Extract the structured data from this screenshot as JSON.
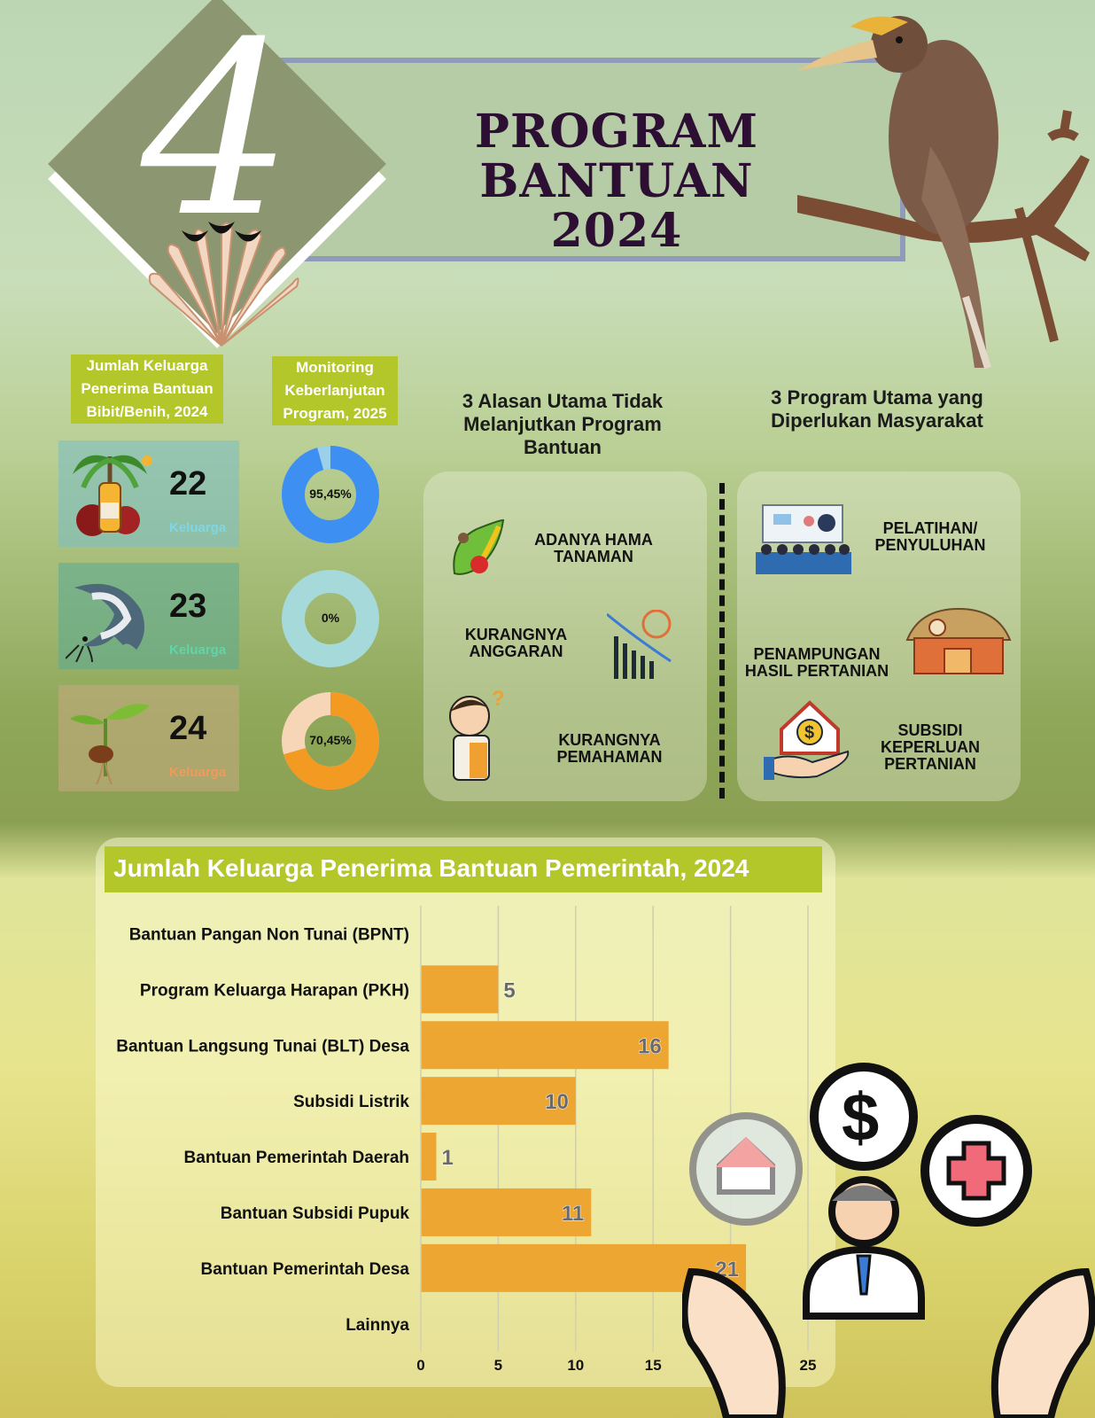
{
  "header": {
    "number": "4",
    "title_line1": "PROGRAM BANTUAN",
    "title_line2": "2024"
  },
  "labels": {
    "recipients_heading": "Jumlah Keluarga Penerima Bantuan Bibit/Benih, 2024",
    "monitoring_heading": "Monitoring Keberlanjutan Program, 2025"
  },
  "recipients": [
    {
      "count": "22",
      "unit": "Keluarga",
      "icon": "palm-oil-icon",
      "unit_color": "#7fd6e6"
    },
    {
      "count": "23",
      "unit": "Keluarga",
      "icon": "catfish-icon",
      "unit_color": "#5fd6a8"
    },
    {
      "count": "24",
      "unit": "Keluarga",
      "icon": "seedling-icon",
      "unit_color": "#f29a5a"
    }
  ],
  "monitoring": [
    {
      "label": "95,45%",
      "value": 95.45,
      "color": "#3d8ff2",
      "track": "#9ad0ea"
    },
    {
      "label": "0%",
      "value": 0,
      "color": "#86c7c9",
      "track": "#a6d9da"
    },
    {
      "label": "70,45%",
      "value": 70.45,
      "color": "#f29a22",
      "track": "#f7d6b8"
    }
  ],
  "reasons": {
    "title": "3 Alasan Utama Tidak Melanjutkan Program Bantuan",
    "items": [
      {
        "text": "ADANYA HAMA TANAMAN",
        "icon": "pest-icon"
      },
      {
        "text": "KURANGNYA ANGGARAN",
        "icon": "cost-decline-icon"
      },
      {
        "text": "KURANGNYA PEMAHAMAN",
        "icon": "confused-farmer-icon"
      }
    ]
  },
  "programs": {
    "title": "3 Program Utama yang Diperlukan Masyarakat",
    "items": [
      {
        "text": "PELATIHAN/ PENYULUHAN",
        "icon": "training-icon"
      },
      {
        "text": "PENAMPUNGAN HASIL PERTANIAN",
        "icon": "warehouse-icon"
      },
      {
        "text": "SUBSIDI KEPERLUAN PERTANIAN",
        "icon": "subsidy-icon"
      }
    ]
  },
  "colors": {
    "bar": "#eea633",
    "accent": "#b3c62a",
    "title": "#2d0f33"
  },
  "chart_data": {
    "type": "bar",
    "orientation": "horizontal",
    "title": "Jumlah Keluarga Penerima Bantuan Pemerintah, 2024",
    "categories": [
      "Bantuan Pangan Non Tunai (BPNT)",
      "Program Keluarga Harapan (PKH)",
      "Bantuan Langsung Tunai (BLT) Desa",
      "Subsidi Listrik",
      "Bantuan Pemerintah Daerah",
      "Bantuan Subsidi Pupuk",
      "Bantuan Pemerintah Desa",
      "Lainnya"
    ],
    "values": [
      0,
      5,
      16,
      10,
      1,
      11,
      21,
      0
    ],
    "value_labels": [
      "",
      "5",
      "16",
      "10",
      "1",
      "11",
      "21",
      ""
    ],
    "xlim": [
      0,
      25
    ],
    "xticks": [
      0,
      5,
      10,
      15,
      20,
      25
    ],
    "grid": true
  }
}
